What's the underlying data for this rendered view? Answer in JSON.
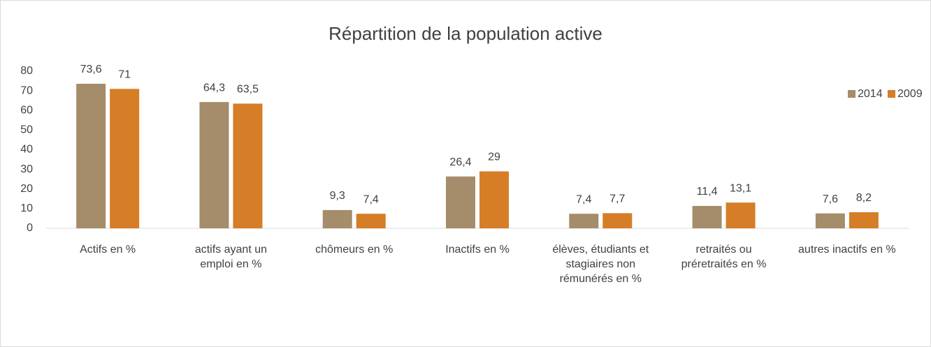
{
  "chart_data": {
    "type": "bar",
    "title": "Répartition de la population active",
    "categories": [
      "Actifs en %",
      "actifs ayant un emploi en %",
      "chômeurs en %",
      "Inactifs en %",
      "élèves, étudiants et stagiaires non rémunérés en %",
      "retraités ou préretraités en %",
      "autres inactifs en %"
    ],
    "series": [
      {
        "name": "2014",
        "color": "#a58c6a",
        "values": [
          73.6,
          64.3,
          9.3,
          26.4,
          7.4,
          11.4,
          7.6
        ],
        "value_labels": [
          "73,6",
          "64,3",
          "9,3",
          "26,4",
          "7,4",
          "11,4",
          "7,6"
        ]
      },
      {
        "name": "2009",
        "color": "#d57d27",
        "values": [
          71,
          63.5,
          7.4,
          29,
          7.7,
          13.1,
          8.2
        ],
        "value_labels": [
          "71",
          "63,5",
          "7,4",
          "29",
          "7,7",
          "13,1",
          "8,2"
        ]
      }
    ],
    "ylim": [
      0,
      80
    ],
    "yticks": [
      0,
      10,
      20,
      30,
      40,
      50,
      60,
      70,
      80
    ],
    "grid": false,
    "legend": "top-right"
  }
}
